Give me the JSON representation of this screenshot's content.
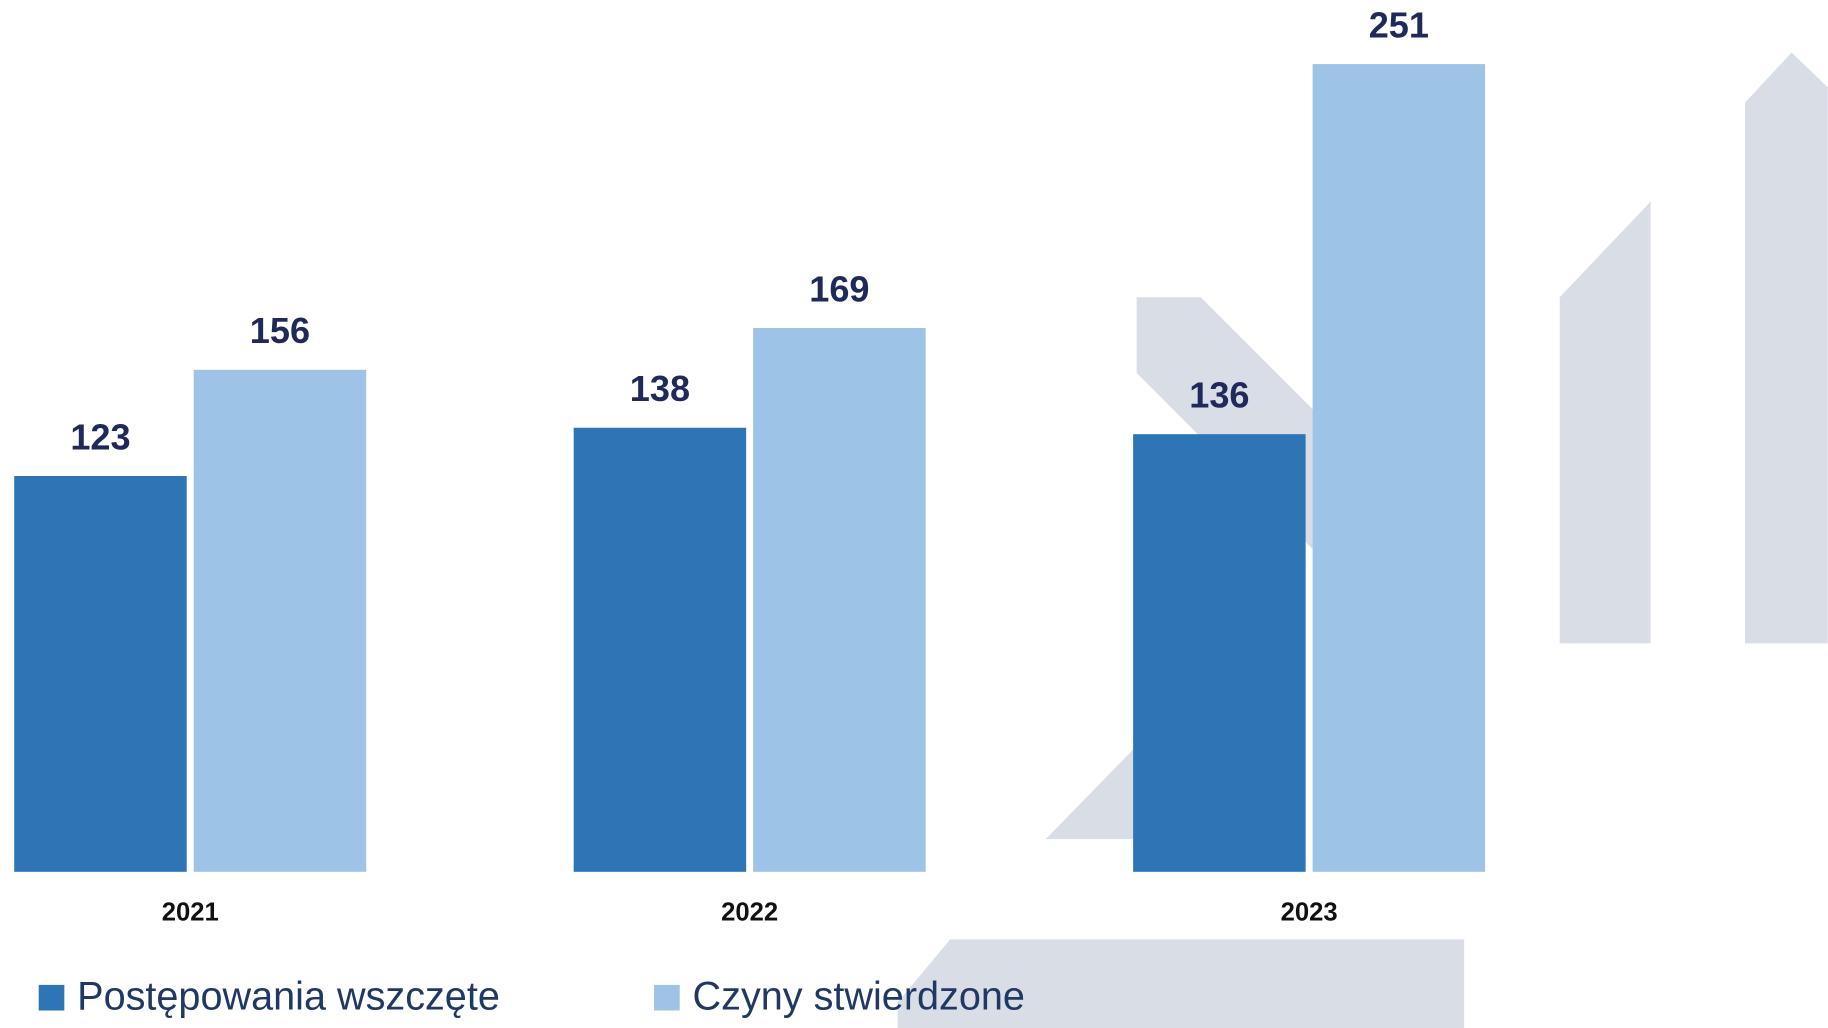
{
  "chart_data": {
    "type": "bar",
    "categories": [
      "2021",
      "2022",
      "2023"
    ],
    "series": [
      {
        "name": "Postępowania wszczęte",
        "color": "#2e75b6",
        "values": [
          123,
          138,
          136
        ]
      },
      {
        "name": "Czyny stwierdzone",
        "color": "#9dc3e6",
        "values": [
          156,
          169,
          251
        ]
      }
    ],
    "grid": false,
    "legend": "bottom-left"
  }
}
